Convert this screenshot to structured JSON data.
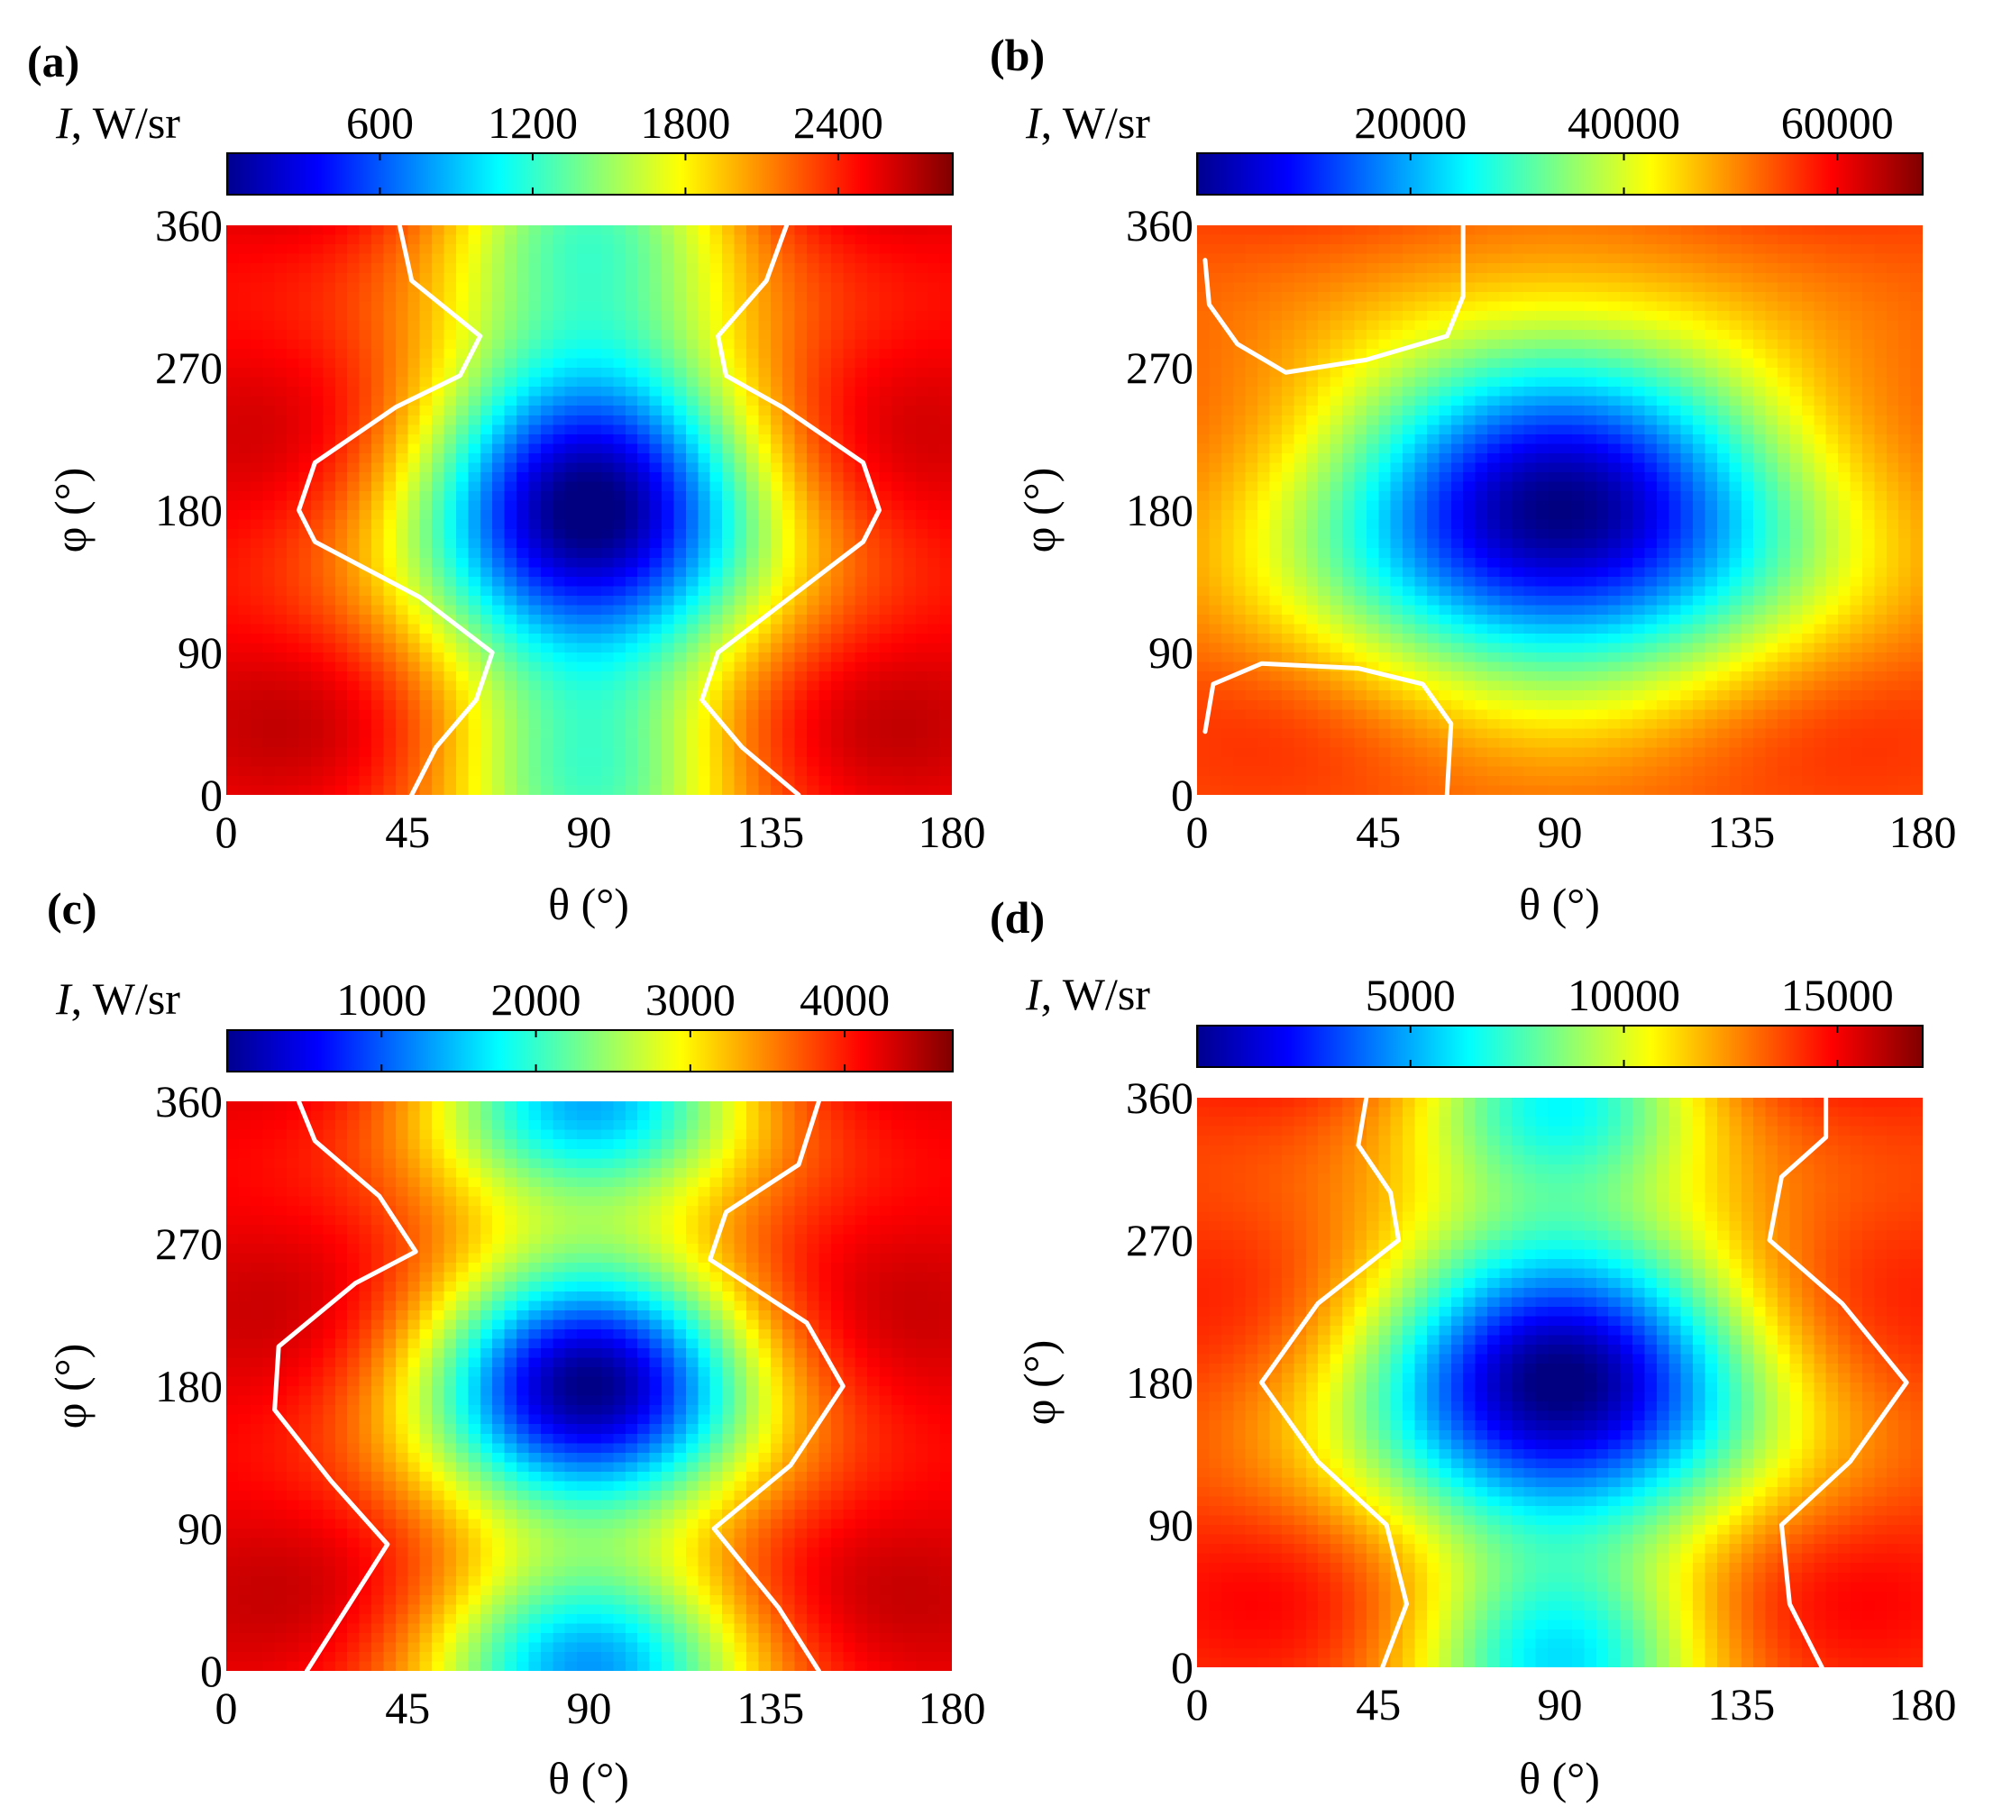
{
  "figure": {
    "colorbar_label_symbol": "I",
    "colorbar_label_unit": ", W/sr"
  },
  "chart_data": [
    {
      "panel": "(a)",
      "type": "heatmap",
      "xlabel": "θ (°)",
      "ylabel": "φ (°)",
      "xlim": [
        0,
        180
      ],
      "ylim": [
        0,
        360
      ],
      "xticks": [
        0,
        45,
        90,
        135,
        180
      ],
      "yticks": [
        0,
        90,
        180,
        270,
        360
      ],
      "colorbar": {
        "range": [
          0,
          2850
        ],
        "ticks": [
          600,
          1200,
          1800,
          2400
        ]
      },
      "field": {
        "base": 2600,
        "vary": 250,
        "mins": [
          {
            "theta": 90,
            "phi": 180,
            "value": 80,
            "s_theta": 32,
            "s_phi": 72
          },
          {
            "theta": 90,
            "phi": 360,
            "value": 1500,
            "s_theta": 28,
            "s_phi": 58
          },
          {
            "theta": 90,
            "phi": 0,
            "value": 1500,
            "s_theta": 28,
            "s_phi": 58
          }
        ]
      },
      "contour_curves": [
        [
          [
            46,
            0
          ],
          [
            52,
            30
          ],
          [
            62,
            60
          ],
          [
            66,
            90
          ],
          [
            48,
            125
          ],
          [
            22,
            160
          ],
          [
            18,
            180
          ],
          [
            22,
            210
          ],
          [
            42,
            245
          ],
          [
            58,
            265
          ],
          [
            63,
            290
          ],
          [
            46,
            325
          ],
          [
            43,
            360
          ]
        ],
        [
          [
            142,
            0
          ],
          [
            128,
            30
          ],
          [
            118,
            60
          ],
          [
            122,
            90
          ],
          [
            140,
            125
          ],
          [
            158,
            160
          ],
          [
            162,
            180
          ],
          [
            158,
            210
          ],
          [
            138,
            245
          ],
          [
            124,
            265
          ],
          [
            122,
            290
          ],
          [
            134,
            325
          ],
          [
            139,
            360
          ]
        ]
      ]
    },
    {
      "panel": "(b)",
      "type": "heatmap",
      "xlabel": "θ (°)",
      "ylabel": "φ (°)",
      "xlim": [
        0,
        180
      ],
      "ylim": [
        0,
        360
      ],
      "xticks": [
        0,
        45,
        90,
        135,
        180
      ],
      "yticks": [
        0,
        90,
        180,
        270,
        360
      ],
      "colorbar": {
        "range": [
          0,
          68000
        ],
        "ticks": [
          20000,
          40000,
          60000
        ]
      },
      "field": {
        "base": 56000,
        "vary": 4000,
        "mins": [
          {
            "theta": 90,
            "phi": 180,
            "value": 2000,
            "s_theta": 44,
            "s_phi": 74
          }
        ]
      },
      "contour_curves": [
        [
          [
            2,
            338
          ],
          [
            3,
            310
          ],
          [
            10,
            285
          ],
          [
            22,
            267
          ],
          [
            42,
            275
          ],
          [
            62,
            290
          ],
          [
            66,
            315
          ],
          [
            66,
            360
          ]
        ],
        [
          [
            2,
            40
          ],
          [
            4,
            70
          ],
          [
            16,
            83
          ],
          [
            40,
            80
          ],
          [
            56,
            70
          ],
          [
            63,
            45
          ],
          [
            62,
            0
          ]
        ]
      ]
    },
    {
      "panel": "(c)",
      "type": "heatmap",
      "xlabel": "θ (°)",
      "ylabel": "φ (°)",
      "xlim": [
        0,
        180
      ],
      "ylim": [
        0,
        360
      ],
      "xticks": [
        0,
        45,
        90,
        135,
        180
      ],
      "yticks": [
        0,
        90,
        180,
        270,
        360
      ],
      "colorbar": {
        "range": [
          0,
          4700
        ],
        "ticks": [
          1000,
          2000,
          3000,
          4000
        ]
      },
      "field": {
        "base": 4300,
        "vary": 350,
        "mins": [
          {
            "theta": 90,
            "phi": 180,
            "value": 200,
            "s_theta": 30,
            "s_phi": 58
          },
          {
            "theta": 90,
            "phi": 0,
            "value": 1500,
            "s_theta": 30,
            "s_phi": 50
          },
          {
            "theta": 90,
            "phi": 360,
            "value": 1600,
            "s_theta": 30,
            "s_phi": 48
          }
        ]
      },
      "contour_curves": [
        [
          [
            20,
            0
          ],
          [
            30,
            40
          ],
          [
            40,
            80
          ],
          [
            26,
            120
          ],
          [
            12,
            165
          ],
          [
            13,
            205
          ],
          [
            32,
            245
          ],
          [
            47,
            265
          ],
          [
            38,
            300
          ],
          [
            22,
            335
          ],
          [
            18,
            360
          ]
        ],
        [
          [
            147,
            0
          ],
          [
            137,
            40
          ],
          [
            121,
            90
          ],
          [
            140,
            130
          ],
          [
            153,
            180
          ],
          [
            144,
            220
          ],
          [
            120,
            260
          ],
          [
            124,
            290
          ],
          [
            142,
            320
          ],
          [
            147,
            360
          ]
        ]
      ]
    },
    {
      "panel": "(d)",
      "type": "heatmap",
      "xlabel": "θ (°)",
      "ylabel": "φ (°)",
      "xlim": [
        0,
        180
      ],
      "ylim": [
        0,
        360
      ],
      "xticks": [
        0,
        45,
        90,
        135,
        180
      ],
      "yticks": [
        0,
        90,
        180,
        270,
        360
      ],
      "colorbar": {
        "range": [
          0,
          17000
        ],
        "ticks": [
          5000,
          10000,
          15000
        ]
      },
      "field": {
        "base": 14500,
        "vary": 1400,
        "mins": [
          {
            "theta": 90,
            "phi": 180,
            "value": 500,
            "s_theta": 36,
            "s_phi": 68
          },
          {
            "theta": 90,
            "phi": 0,
            "value": 7000,
            "s_theta": 26,
            "s_phi": 48
          },
          {
            "theta": 90,
            "phi": 360,
            "value": 7500,
            "s_theta": 26,
            "s_phi": 46
          }
        ]
      },
      "contour_curves": [
        [
          [
            46,
            0
          ],
          [
            52,
            40
          ],
          [
            47,
            90
          ],
          [
            30,
            130
          ],
          [
            16,
            180
          ],
          [
            30,
            230
          ],
          [
            50,
            270
          ],
          [
            48,
            300
          ],
          [
            40,
            330
          ],
          [
            42,
            360
          ]
        ],
        [
          [
            155,
            0
          ],
          [
            147,
            40
          ],
          [
            145,
            90
          ],
          [
            162,
            130
          ],
          [
            176,
            180
          ],
          [
            160,
            230
          ],
          [
            142,
            270
          ],
          [
            145,
            310
          ],
          [
            156,
            335
          ],
          [
            156,
            360
          ]
        ]
      ]
    }
  ]
}
